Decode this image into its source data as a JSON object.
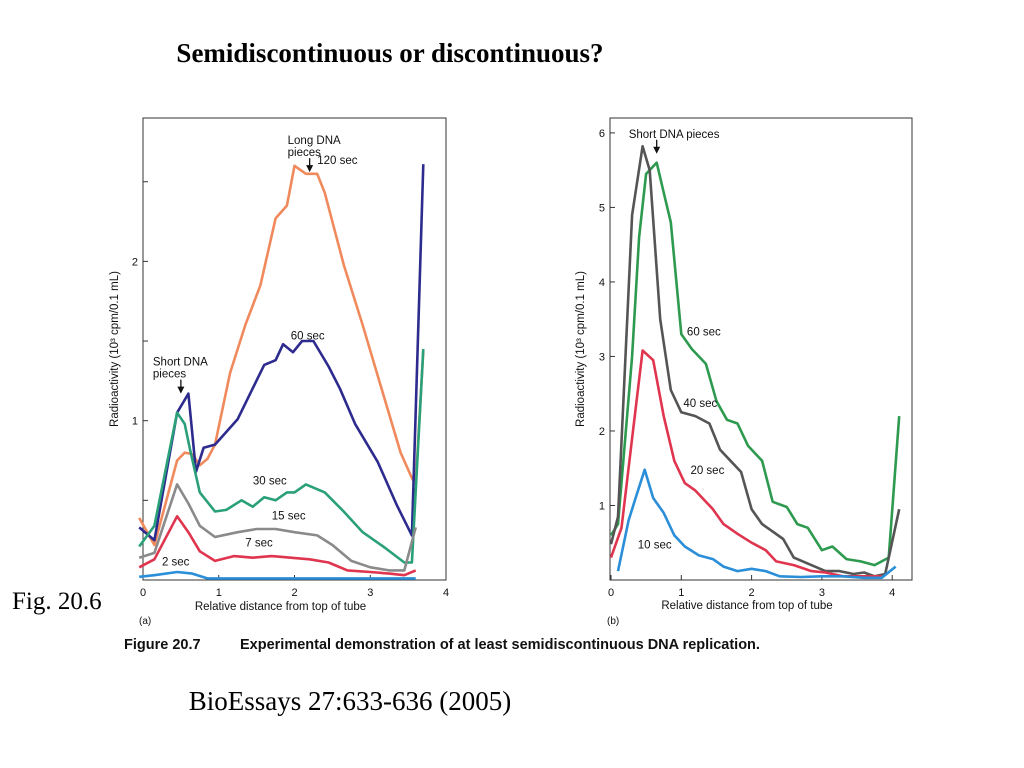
{
  "slide": {
    "title": "Semidiscontinuous or discontinuous?",
    "fig_label": "Fig. 20.6",
    "citation": "BioEssays 27:633-636 (2005)"
  },
  "figure": {
    "caption_number": "Figure 20.7",
    "caption_text": "Experimental demonstration of at least semidiscontinuous DNA replication."
  },
  "chart_data": [
    {
      "type": "line",
      "panel_label": "(a)",
      "xlabel": "Relative distance from top of tube",
      "ylabel": "Radioactivity (10³ cpm/0.1 mL)",
      "xlim": [
        0,
        4
      ],
      "ylim": [
        0,
        2.9
      ],
      "x_ticks": [
        0,
        1,
        2,
        3,
        4
      ],
      "y_ticks": [
        1,
        2
      ],
      "grid": false,
      "annotations": [
        {
          "text_lines": [
            "Long DNA",
            "pieces"
          ],
          "x": 2.2,
          "y": 2.56
        },
        {
          "text_lines": [
            "Short DNA",
            "pieces"
          ],
          "x": 0.5,
          "y": 1.17
        }
      ],
      "series": [
        {
          "name": "120 sec",
          "color": "#f08a5d",
          "label_at": [
            2.3,
            2.61
          ],
          "points": [
            [
              -0.05,
              0.39
            ],
            [
              0.15,
              0.22
            ],
            [
              0.45,
              0.75
            ],
            [
              0.55,
              0.8
            ],
            [
              0.65,
              0.79
            ],
            [
              0.75,
              0.72
            ],
            [
              0.85,
              0.76
            ],
            [
              0.95,
              0.85
            ],
            [
              1.15,
              1.3
            ],
            [
              1.35,
              1.6
            ],
            [
              1.55,
              1.85
            ],
            [
              1.75,
              2.27
            ],
            [
              1.9,
              2.35
            ],
            [
              2.0,
              2.6
            ],
            [
              2.15,
              2.55
            ],
            [
              2.3,
              2.55
            ],
            [
              2.4,
              2.43
            ],
            [
              2.65,
              1.98
            ],
            [
              2.9,
              1.6
            ],
            [
              3.15,
              1.2
            ],
            [
              3.4,
              0.8
            ],
            [
              3.55,
              0.64
            ],
            [
              3.6,
              0.6
            ],
            [
              3.7,
              1.44
            ]
          ]
        },
        {
          "name": "60 sec",
          "color": "#2e2b8f",
          "label_at": [
            1.95,
            1.51
          ],
          "points": [
            [
              -0.05,
              0.33
            ],
            [
              0.15,
              0.25
            ],
            [
              0.45,
              1.05
            ],
            [
              0.6,
              1.17
            ],
            [
              0.7,
              0.68
            ],
            [
              0.8,
              0.83
            ],
            [
              0.95,
              0.85
            ],
            [
              1.25,
              1.01
            ],
            [
              1.6,
              1.35
            ],
            [
              1.75,
              1.38
            ],
            [
              1.85,
              1.48
            ],
            [
              1.98,
              1.43
            ],
            [
              2.1,
              1.5
            ],
            [
              2.25,
              1.5
            ],
            [
              2.45,
              1.34
            ],
            [
              2.6,
              1.2
            ],
            [
              2.8,
              0.98
            ],
            [
              3.1,
              0.74
            ],
            [
              3.35,
              0.47
            ],
            [
              3.55,
              0.28
            ],
            [
              3.7,
              2.61
            ]
          ]
        },
        {
          "name": "30 sec",
          "color": "#2aa07a",
          "label_at": [
            1.45,
            0.6
          ],
          "points": [
            [
              -0.05,
              0.21
            ],
            [
              0.15,
              0.34
            ],
            [
              0.45,
              1.05
            ],
            [
              0.55,
              0.98
            ],
            [
              0.62,
              0.82
            ],
            [
              0.75,
              0.55
            ],
            [
              0.95,
              0.43
            ],
            [
              1.1,
              0.44
            ],
            [
              1.3,
              0.5
            ],
            [
              1.45,
              0.46
            ],
            [
              1.6,
              0.52
            ],
            [
              1.75,
              0.5
            ],
            [
              1.9,
              0.55
            ],
            [
              2.0,
              0.55
            ],
            [
              2.15,
              0.6
            ],
            [
              2.4,
              0.55
            ],
            [
              2.65,
              0.43
            ],
            [
              2.9,
              0.3
            ],
            [
              3.2,
              0.2
            ],
            [
              3.45,
              0.11
            ],
            [
              3.55,
              0.11
            ],
            [
              3.7,
              1.45
            ]
          ]
        },
        {
          "name": "15 sec",
          "color": "#8a8a8a",
          "label_at": [
            1.7,
            0.38
          ],
          "points": [
            [
              -0.05,
              0.14
            ],
            [
              0.15,
              0.17
            ],
            [
              0.45,
              0.6
            ],
            [
              0.6,
              0.48
            ],
            [
              0.75,
              0.34
            ],
            [
              0.95,
              0.27
            ],
            [
              1.25,
              0.3
            ],
            [
              1.5,
              0.32
            ],
            [
              1.75,
              0.32
            ],
            [
              2.0,
              0.3
            ],
            [
              2.3,
              0.28
            ],
            [
              2.5,
              0.22
            ],
            [
              2.75,
              0.12
            ],
            [
              3.0,
              0.08
            ],
            [
              3.25,
              0.06
            ],
            [
              3.45,
              0.06
            ],
            [
              3.6,
              0.33
            ]
          ]
        },
        {
          "name": "7 sec",
          "color": "#e0354f",
          "label_at": [
            1.35,
            0.21
          ],
          "points": [
            [
              -0.05,
              0.08
            ],
            [
              0.15,
              0.13
            ],
            [
              0.45,
              0.4
            ],
            [
              0.6,
              0.3
            ],
            [
              0.75,
              0.18
            ],
            [
              0.95,
              0.12
            ],
            [
              1.2,
              0.15
            ],
            [
              1.45,
              0.14
            ],
            [
              1.7,
              0.15
            ],
            [
              1.95,
              0.14
            ],
            [
              2.2,
              0.13
            ],
            [
              2.45,
              0.11
            ],
            [
              2.7,
              0.06
            ],
            [
              3.0,
              0.05
            ],
            [
              3.25,
              0.04
            ],
            [
              3.45,
              0.03
            ],
            [
              3.6,
              0.06
            ]
          ]
        },
        {
          "name": "2 sec",
          "color": "#2a8fd8",
          "label_at": [
            0.25,
            0.09
          ],
          "points": [
            [
              -0.05,
              0.02
            ],
            [
              0.15,
              0.03
            ],
            [
              0.45,
              0.05
            ],
            [
              0.65,
              0.04
            ],
            [
              0.85,
              0.01
            ],
            [
              1.1,
              0.01
            ],
            [
              1.5,
              0.01
            ],
            [
              2.0,
              0.01
            ],
            [
              2.5,
              0.01
            ],
            [
              3.0,
              0.01
            ],
            [
              3.4,
              0.01
            ],
            [
              3.6,
              0.01
            ]
          ]
        }
      ]
    },
    {
      "type": "line",
      "panel_label": "(b)",
      "xlabel": "Relative distance from top of tube",
      "ylabel": "Radioactivity (10³ cpm/0.1 mL)",
      "xlim": [
        0,
        4.25
      ],
      "ylim": [
        0,
        6.2
      ],
      "x_ticks": [
        0,
        1,
        2,
        3,
        4
      ],
      "y_ticks": [
        1,
        2,
        3,
        4,
        5,
        6
      ],
      "grid": false,
      "annotations": [
        {
          "text_lines": [
            "Short DNA pieces"
          ],
          "x": 0.65,
          "y": 5.72
        }
      ],
      "series": [
        {
          "name": "60 sec",
          "color": "#2e9a4f",
          "label_at": [
            1.08,
            3.28
          ],
          "points": [
            [
              0.0,
              0.6
            ],
            [
              0.1,
              0.75
            ],
            [
              0.3,
              3.0
            ],
            [
              0.4,
              4.6
            ],
            [
              0.5,
              5.45
            ],
            [
              0.65,
              5.6
            ],
            [
              0.75,
              5.2
            ],
            [
              0.85,
              4.8
            ],
            [
              1.0,
              3.3
            ],
            [
              1.15,
              3.1
            ],
            [
              1.35,
              2.9
            ],
            [
              1.5,
              2.4
            ],
            [
              1.65,
              2.15
            ],
            [
              1.8,
              2.1
            ],
            [
              1.95,
              1.8
            ],
            [
              2.15,
              1.6
            ],
            [
              2.3,
              1.05
            ],
            [
              2.5,
              0.98
            ],
            [
              2.65,
              0.75
            ],
            [
              2.8,
              0.7
            ],
            [
              3.0,
              0.4
            ],
            [
              3.15,
              0.45
            ],
            [
              3.35,
              0.28
            ],
            [
              3.55,
              0.25
            ],
            [
              3.75,
              0.2
            ],
            [
              3.95,
              0.3
            ],
            [
              4.1,
              2.2
            ]
          ]
        },
        {
          "name": "40 sec",
          "color": "#555555",
          "label_at": [
            1.03,
            2.32
          ],
          "points": [
            [
              0.0,
              0.48
            ],
            [
              0.1,
              0.85
            ],
            [
              0.3,
              4.9
            ],
            [
              0.45,
              5.82
            ],
            [
              0.55,
              5.5
            ],
            [
              0.7,
              3.5
            ],
            [
              0.85,
              2.55
            ],
            [
              1.0,
              2.25
            ],
            [
              1.2,
              2.2
            ],
            [
              1.4,
              2.1
            ],
            [
              1.55,
              1.75
            ],
            [
              1.7,
              1.6
            ],
            [
              1.85,
              1.45
            ],
            [
              2.0,
              0.95
            ],
            [
              2.15,
              0.75
            ],
            [
              2.3,
              0.65
            ],
            [
              2.45,
              0.55
            ],
            [
              2.6,
              0.3
            ],
            [
              2.8,
              0.22
            ],
            [
              3.05,
              0.12
            ],
            [
              3.25,
              0.12
            ],
            [
              3.45,
              0.08
            ],
            [
              3.6,
              0.1
            ],
            [
              3.75,
              0.05
            ],
            [
              3.9,
              0.08
            ],
            [
              4.1,
              0.95
            ]
          ]
        },
        {
          "name": "20 sec",
          "color": "#e0354f",
          "label_at": [
            1.13,
            1.42
          ],
          "points": [
            [
              0.0,
              0.3
            ],
            [
              0.15,
              0.7
            ],
            [
              0.3,
              1.9
            ],
            [
              0.45,
              3.08
            ],
            [
              0.6,
              2.95
            ],
            [
              0.75,
              2.2
            ],
            [
              0.9,
              1.6
            ],
            [
              1.05,
              1.3
            ],
            [
              1.2,
              1.2
            ],
            [
              1.45,
              0.95
            ],
            [
              1.6,
              0.75
            ],
            [
              1.8,
              0.62
            ],
            [
              2.0,
              0.5
            ],
            [
              2.2,
              0.4
            ],
            [
              2.35,
              0.25
            ],
            [
              2.6,
              0.2
            ],
            [
              2.85,
              0.12
            ],
            [
              3.05,
              0.1
            ],
            [
              3.3,
              0.05
            ],
            [
              3.6,
              0.05
            ],
            [
              3.85,
              0.05
            ]
          ]
        },
        {
          "name": "10 sec",
          "color": "#2a8fd8",
          "label_at": [
            0.38,
            0.42
          ],
          "points": [
            [
              0.1,
              0.12
            ],
            [
              0.25,
              0.8
            ],
            [
              0.35,
              1.1
            ],
            [
              0.48,
              1.48
            ],
            [
              0.6,
              1.1
            ],
            [
              0.75,
              0.9
            ],
            [
              0.9,
              0.6
            ],
            [
              1.05,
              0.45
            ],
            [
              1.25,
              0.33
            ],
            [
              1.45,
              0.28
            ],
            [
              1.6,
              0.18
            ],
            [
              1.8,
              0.12
            ],
            [
              2.0,
              0.15
            ],
            [
              2.2,
              0.12
            ],
            [
              2.4,
              0.05
            ],
            [
              2.7,
              0.04
            ],
            [
              3.0,
              0.05
            ],
            [
              3.3,
              0.05
            ],
            [
              3.6,
              0.03
            ],
            [
              3.85,
              0.03
            ],
            [
              4.05,
              0.18
            ]
          ]
        }
      ]
    }
  ]
}
